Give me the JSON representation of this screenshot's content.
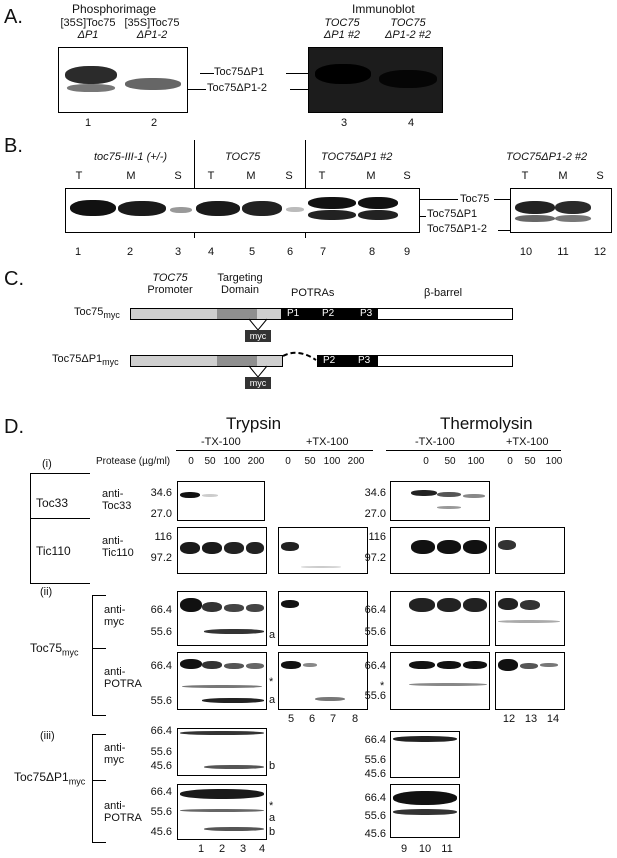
{
  "panelA": {
    "letter": "A.",
    "phosphor_title": "Phosphorimage",
    "immuno_title": "Immunoblot",
    "lane1_line1": "[35S]Toc75",
    "lane1_line2": "ΔP1",
    "lane2_line1": "[35S]Toc75",
    "lane2_line2": "ΔP1-2",
    "lane3_line1": "TOC75",
    "lane3_line2": "ΔP1 #2",
    "lane4_line1": "TOC75",
    "lane4_line2": "ΔP1-2 #2",
    "band1": "Toc75ΔP1",
    "band2": "Toc75ΔP1-2",
    "nums": [
      "1",
      "2",
      "3",
      "4"
    ]
  },
  "panelB": {
    "letter": "B.",
    "groups": [
      "toc75-III-1 (+/-)",
      "TOC75",
      "TOC75ΔP1 #2",
      "TOC75ΔP1-2 #2"
    ],
    "fractions": [
      "T",
      "M",
      "S"
    ],
    "bands": [
      "Toc75",
      "Toc75ΔP1",
      "Toc75ΔP1-2"
    ],
    "nums": [
      "1",
      "2",
      "3",
      "4",
      "5",
      "6",
      "7",
      "8",
      "9",
      "10",
      "11",
      "12"
    ]
  },
  "panelC": {
    "letter": "C.",
    "promoter_line1": "TOC75",
    "promoter_line2": "Promoter",
    "targeting_line1": "Targeting",
    "targeting_line2": "Domain",
    "potras": "POTRAs",
    "barrel": "β-barrel",
    "construct1": "Toc75",
    "construct1_sub": "myc",
    "construct2": "Toc75ΔP1",
    "construct2_sub": "myc",
    "tag": "myc",
    "p1": "P1",
    "p2": "P2",
    "p3": "P3"
  },
  "panelD": {
    "letter": "D.",
    "trypsin": "Trypsin",
    "thermolysin": "Thermolysin",
    "minus_tx": "-TX-100",
    "plus_tx": "+TX-100",
    "protease_label": "Protease (µg/ml)",
    "trypsin_minus_conc": [
      "0",
      "50",
      "100",
      "200"
    ],
    "trypsin_plus_conc": [
      "0",
      "50",
      "100",
      "200"
    ],
    "thermo_minus_conc": [
      "0",
      "50",
      "100"
    ],
    "thermo_plus_conc": [
      "0",
      "50",
      "100"
    ],
    "sec_i": "(i)",
    "sec_ii": "(ii)",
    "sec_iii": "(iii)",
    "toc33": "Toc33",
    "tic110": "Tic110",
    "toc75myc": "Toc75",
    "toc75myc_sub": "myc",
    "toc75dp1myc": "Toc75ΔP1",
    "toc75dp1myc_sub": "myc",
    "anti": "anti-",
    "anti_toc33": "Toc33",
    "anti_tic110": "Tic110",
    "anti_myc": "myc",
    "anti_potra": "POTRA",
    "mw": {
      "toc33": [
        "34.6",
        "27.0"
      ],
      "tic110": [
        "116",
        "97.2"
      ],
      "myc": [
        "66.4",
        "55.6"
      ],
      "potra": [
        "66.4",
        "55.6"
      ],
      "dp1myc": [
        "66.4",
        "55.6",
        "45.6"
      ],
      "dp1potra": [
        "66.4",
        "55.6",
        "45.6"
      ]
    },
    "marks": {
      "a": "a",
      "b": "b",
      "star": "*"
    },
    "trypsin_nums_a": [
      "1",
      "2",
      "3",
      "4"
    ],
    "trypsin_nums_b": [
      "5",
      "6",
      "7",
      "8"
    ],
    "thermo_nums_a": [
      "9",
      "10",
      "11"
    ],
    "thermo_nums_b": [
      "12",
      "13",
      "14"
    ]
  }
}
